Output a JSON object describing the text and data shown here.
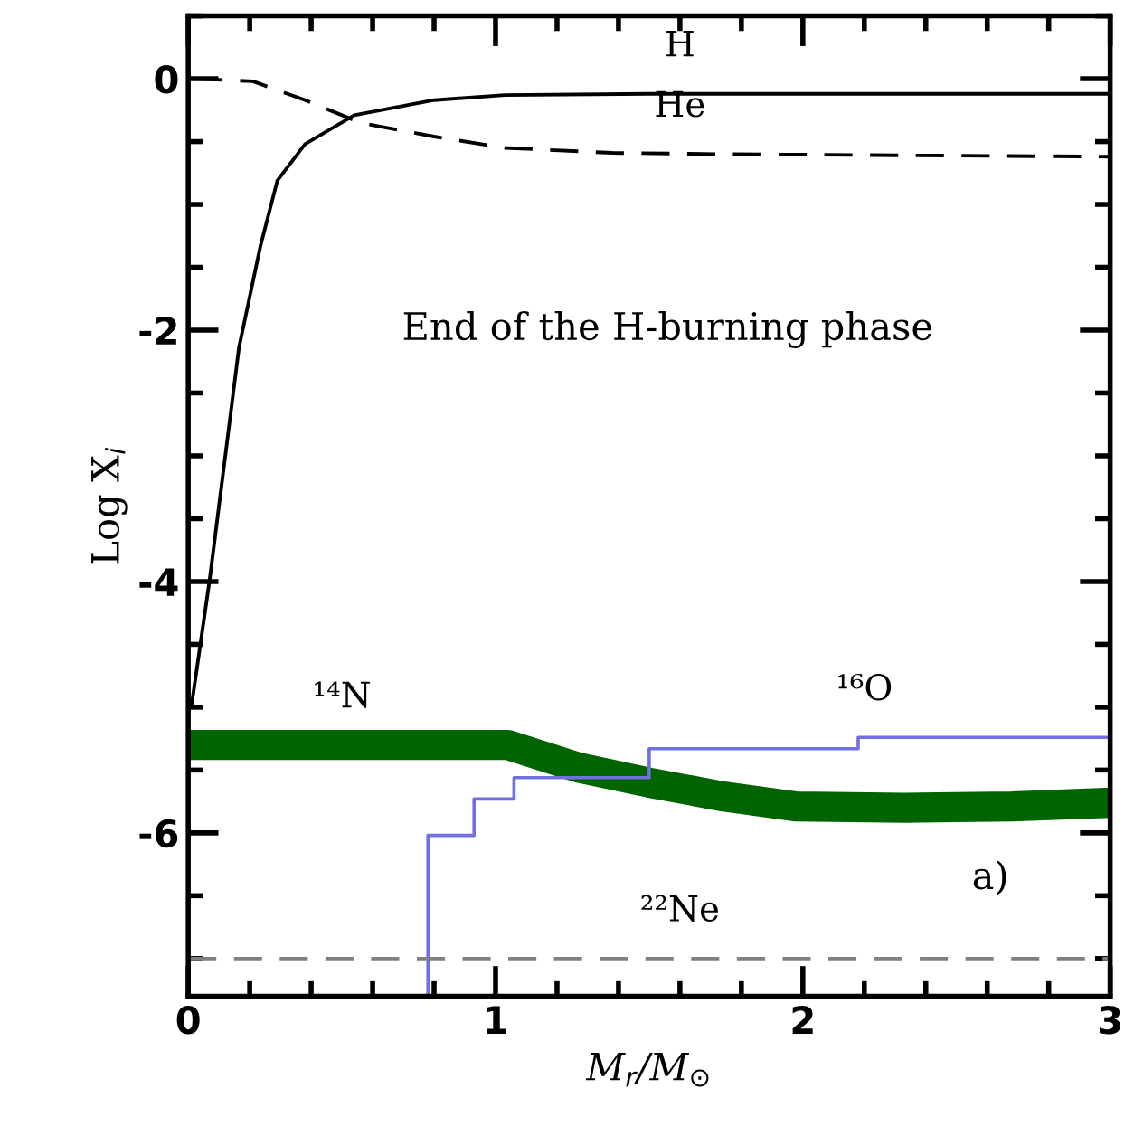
{
  "chart_data": {
    "type": "line",
    "xlabel": "M$_{r}$/M$_{⊙}$",
    "ylabel": "Log X$_{i}$",
    "xlim": [
      0,
      3
    ],
    "ylim": [
      -7.3,
      0.5
    ],
    "xticks": [
      0,
      1,
      2,
      3
    ],
    "yticks": [
      0,
      -2,
      -4,
      -6
    ],
    "grid": false,
    "legend": false,
    "series": [
      {
        "color": "#000000",
        "line_style": "solid",
        "x": [
          0.01,
          0.07,
          0.165,
          0.235,
          0.29,
          0.38,
          0.54,
          0.8,
          1.03,
          1.5,
          3.0
        ],
        "values": [
          -5.0,
          -3.98,
          -2.14,
          -1.33,
          -0.81,
          -0.52,
          -0.29,
          -0.17,
          -0.13,
          -0.12,
          -0.12
        ]
      },
      {
        "color": "#000000",
        "line_style": "dashed",
        "x": [
          0.02,
          0.21,
          0.38,
          0.56,
          0.8,
          1.03,
          1.38,
          1.74,
          3.0
        ],
        "values": [
          0,
          -0.02,
          -0.17,
          -0.35,
          -0.46,
          -0.55,
          -0.59,
          -0.6,
          -0.62
        ]
      },
      {
        "color": "#006400",
        "line_style": "solid",
        "x": [
          0.0,
          1.04,
          1.27,
          1.5,
          1.74,
          1.98,
          2.33,
          2.68,
          3.0
        ],
        "values": [
          -5.3,
          -5.3,
          -5.48,
          -5.6,
          -5.71,
          -5.79,
          -5.8,
          -5.79,
          -5.76
        ]
      },
      {
        "type": "step",
        "color": "#7070e0",
        "line_style": "solid",
        "x": [
          0.78,
          0.78,
          0.93,
          1.06,
          1.5,
          2.18,
          3.0
        ],
        "values": [
          -7.3,
          -6.02,
          -5.73,
          -5.56,
          -5.33,
          -5.24,
          -5.24
        ]
      },
      {
        "color": "#808080",
        "line_style": "dashed",
        "x": [
          0.0,
          3.0
        ],
        "values": [
          -7.0,
          -7.0
        ]
      }
    ],
    "annotations": [
      {
        "text": "H",
        "x": 1.6,
        "y": -0.12
      },
      {
        "text": "He",
        "x": 1.6,
        "y": -0.6
      },
      "End of the H-burning phase",
      {
        "text": "¹⁴N",
        "x": 0.5,
        "y": -5.3
      },
      {
        "text": "¹⁶O",
        "x": 2.2,
        "y": -5.24
      },
      {
        "text": "²²Ne",
        "x": 1.6,
        "y": -7.0
      },
      "a)"
    ]
  }
}
